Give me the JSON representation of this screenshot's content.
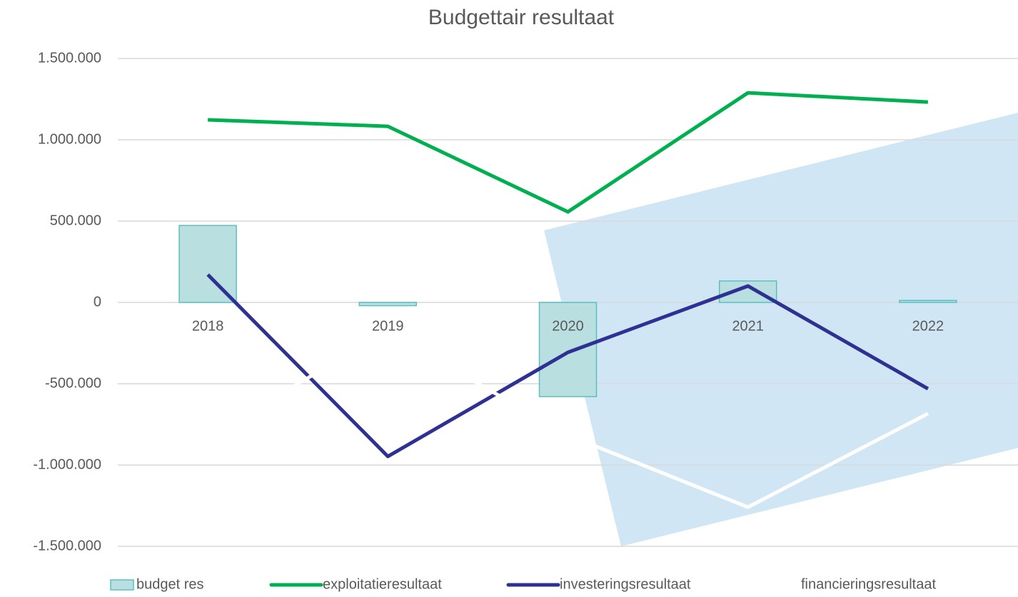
{
  "chart_data": {
    "type": "bar_line",
    "title": "Budgettair resultaat",
    "categories": [
      "2018",
      "2019",
      "2020",
      "2021",
      "2022"
    ],
    "series": [
      {
        "name": "budget res",
        "type": "bar",
        "color": "#b9dfe1",
        "values": [
          473000,
          -20000,
          -579000,
          132000,
          12000
        ]
      },
      {
        "name": "exploitatieresultaat",
        "type": "line",
        "color": "#00b050",
        "values": [
          1123000,
          1083000,
          557000,
          1289000,
          1232000
        ]
      },
      {
        "name": "investeringsresultaat",
        "type": "line",
        "color": "#2e3192",
        "values": [
          171000,
          -947000,
          -307000,
          101000,
          -531000
        ]
      },
      {
        "name": "financieringsresultaat",
        "type": "line",
        "color": "#ffffff",
        "values": [
          -820000,
          -180000,
          -816000,
          -1259000,
          -684000
        ]
      }
    ],
    "ylim": [
      -1500000,
      1500000
    ],
    "yticks": [
      {
        "value": -1500000,
        "label": "-1.500.000"
      },
      {
        "value": -1000000,
        "label": "-1.000.000"
      },
      {
        "value": -500000,
        "label": "-500.000"
      },
      0,
      {
        "value": 500000,
        "label": "500.000"
      },
      {
        "value": 1000000,
        "label": "1.000.000"
      },
      {
        "value": 1500000,
        "label": "1.500.000"
      }
    ],
    "grid": true,
    "legend": "bottom"
  }
}
